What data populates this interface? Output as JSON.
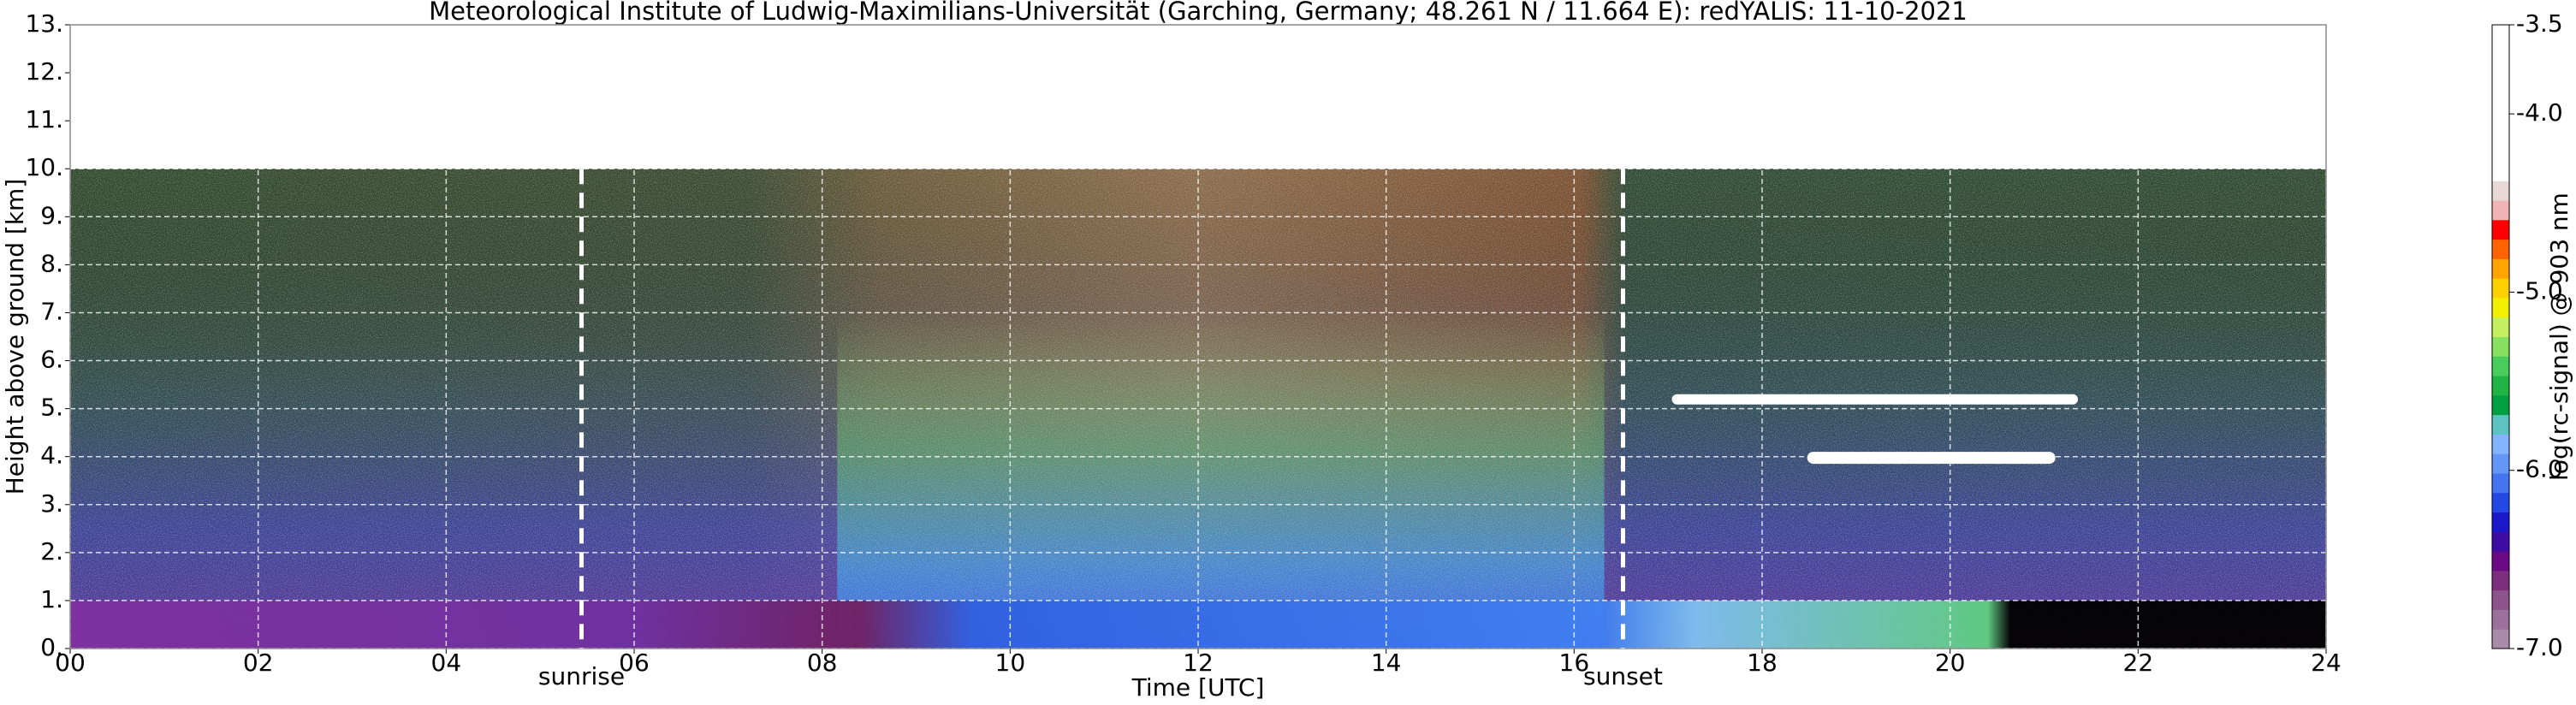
{
  "chart_data": {
    "type": "heatmap",
    "title": "Meteorological Institute of Ludwig-Maximilians-Universität (Garching, Germany; 48.261 N / 11.664 E):    redYALIS: 11-10-2021",
    "x_label": "Time [UTC]",
    "y_label": "Height above ground [km]",
    "xlim": [
      0,
      24
    ],
    "ylim": [
      0,
      13
    ],
    "xticks": [
      {
        "value": 0,
        "label": "00"
      },
      {
        "value": 2,
        "label": "02"
      },
      {
        "value": 4,
        "label": "04"
      },
      {
        "value": 6,
        "label": "06"
      },
      {
        "value": 8,
        "label": "08"
      },
      10,
      12,
      14,
      16,
      18,
      20,
      22,
      24
    ],
    "yticks": [
      {
        "value": 0,
        "label": "0."
      },
      {
        "value": 1,
        "label": "1."
      },
      {
        "value": 2,
        "label": "2."
      },
      {
        "value": 3,
        "label": "3."
      },
      {
        "value": 4,
        "label": "4."
      },
      {
        "value": 5,
        "label": "5."
      },
      {
        "value": 6,
        "label": "6."
      },
      {
        "value": 7,
        "label": "7."
      },
      {
        "value": 8,
        "label": "8."
      },
      {
        "value": 9,
        "label": "9."
      },
      {
        "value": 10,
        "label": "10."
      },
      {
        "value": 11,
        "label": "11."
      },
      {
        "value": 12,
        "label": "12."
      },
      {
        "value": 13,
        "label": "13."
      }
    ],
    "grid": true,
    "annotations": [
      {
        "text": "sunrise",
        "x": 5.44
      },
      {
        "text": "sunset",
        "x": 16.52
      }
    ],
    "colorbar": {
      "label": "log(rc-signal) @ 903 nm",
      "lim": [
        -7.0,
        -3.5
      ],
      "ticks": [
        {
          "value": -7.0,
          "label": "-7.0"
        },
        {
          "value": -6.0,
          "label": "-6.0"
        },
        {
          "value": -5.0,
          "label": "-5.0"
        },
        {
          "value": -4.0,
          "label": "-4.0"
        },
        -3.5
      ],
      "colors": [
        "#a98aa9",
        "#9c709c",
        "#8d538d",
        "#7c2f7c",
        "#6a0a84",
        "#3c0ca4",
        "#1a18c8",
        "#2448e4",
        "#4474f0",
        "#6496f8",
        "#84b4ff",
        "#5cc4c0",
        "#00a040",
        "#20b444",
        "#48cc5c",
        "#88e060",
        "#c4f060",
        "#f0f000",
        "#ffd000",
        "#ffa400",
        "#ff6400",
        "#ff0000",
        "#f0b4b4",
        "#ead8d8",
        "#ffffff",
        "#ffffff",
        "#ffffff",
        "#ffffff",
        "#ffffff",
        "#ffffff",
        "#ffffff",
        "#ffffff"
      ]
    }
  }
}
